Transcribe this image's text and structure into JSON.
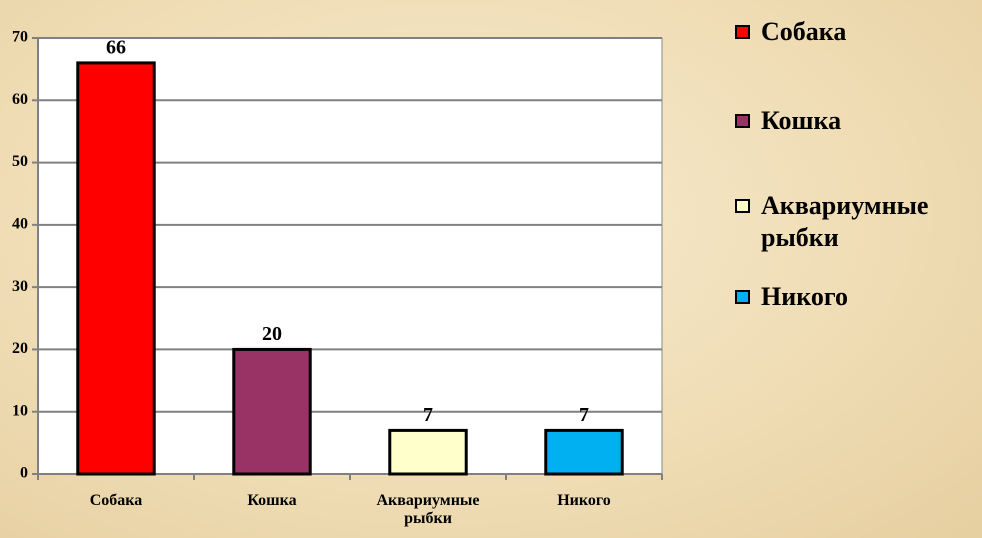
{
  "chart_data": {
    "type": "bar",
    "categories": [
      "Собака",
      "Кошка",
      "Аквариумные рыбки",
      "Никого"
    ],
    "values": [
      66,
      20,
      7,
      7
    ],
    "colors": [
      "#ff0000",
      "#993366",
      "#ffffcc",
      "#00b0f0"
    ],
    "ylim": [
      0,
      70
    ],
    "yticks": [
      0,
      10,
      20,
      30,
      40,
      50,
      60,
      70
    ],
    "grid": true,
    "legend": "right"
  }
}
